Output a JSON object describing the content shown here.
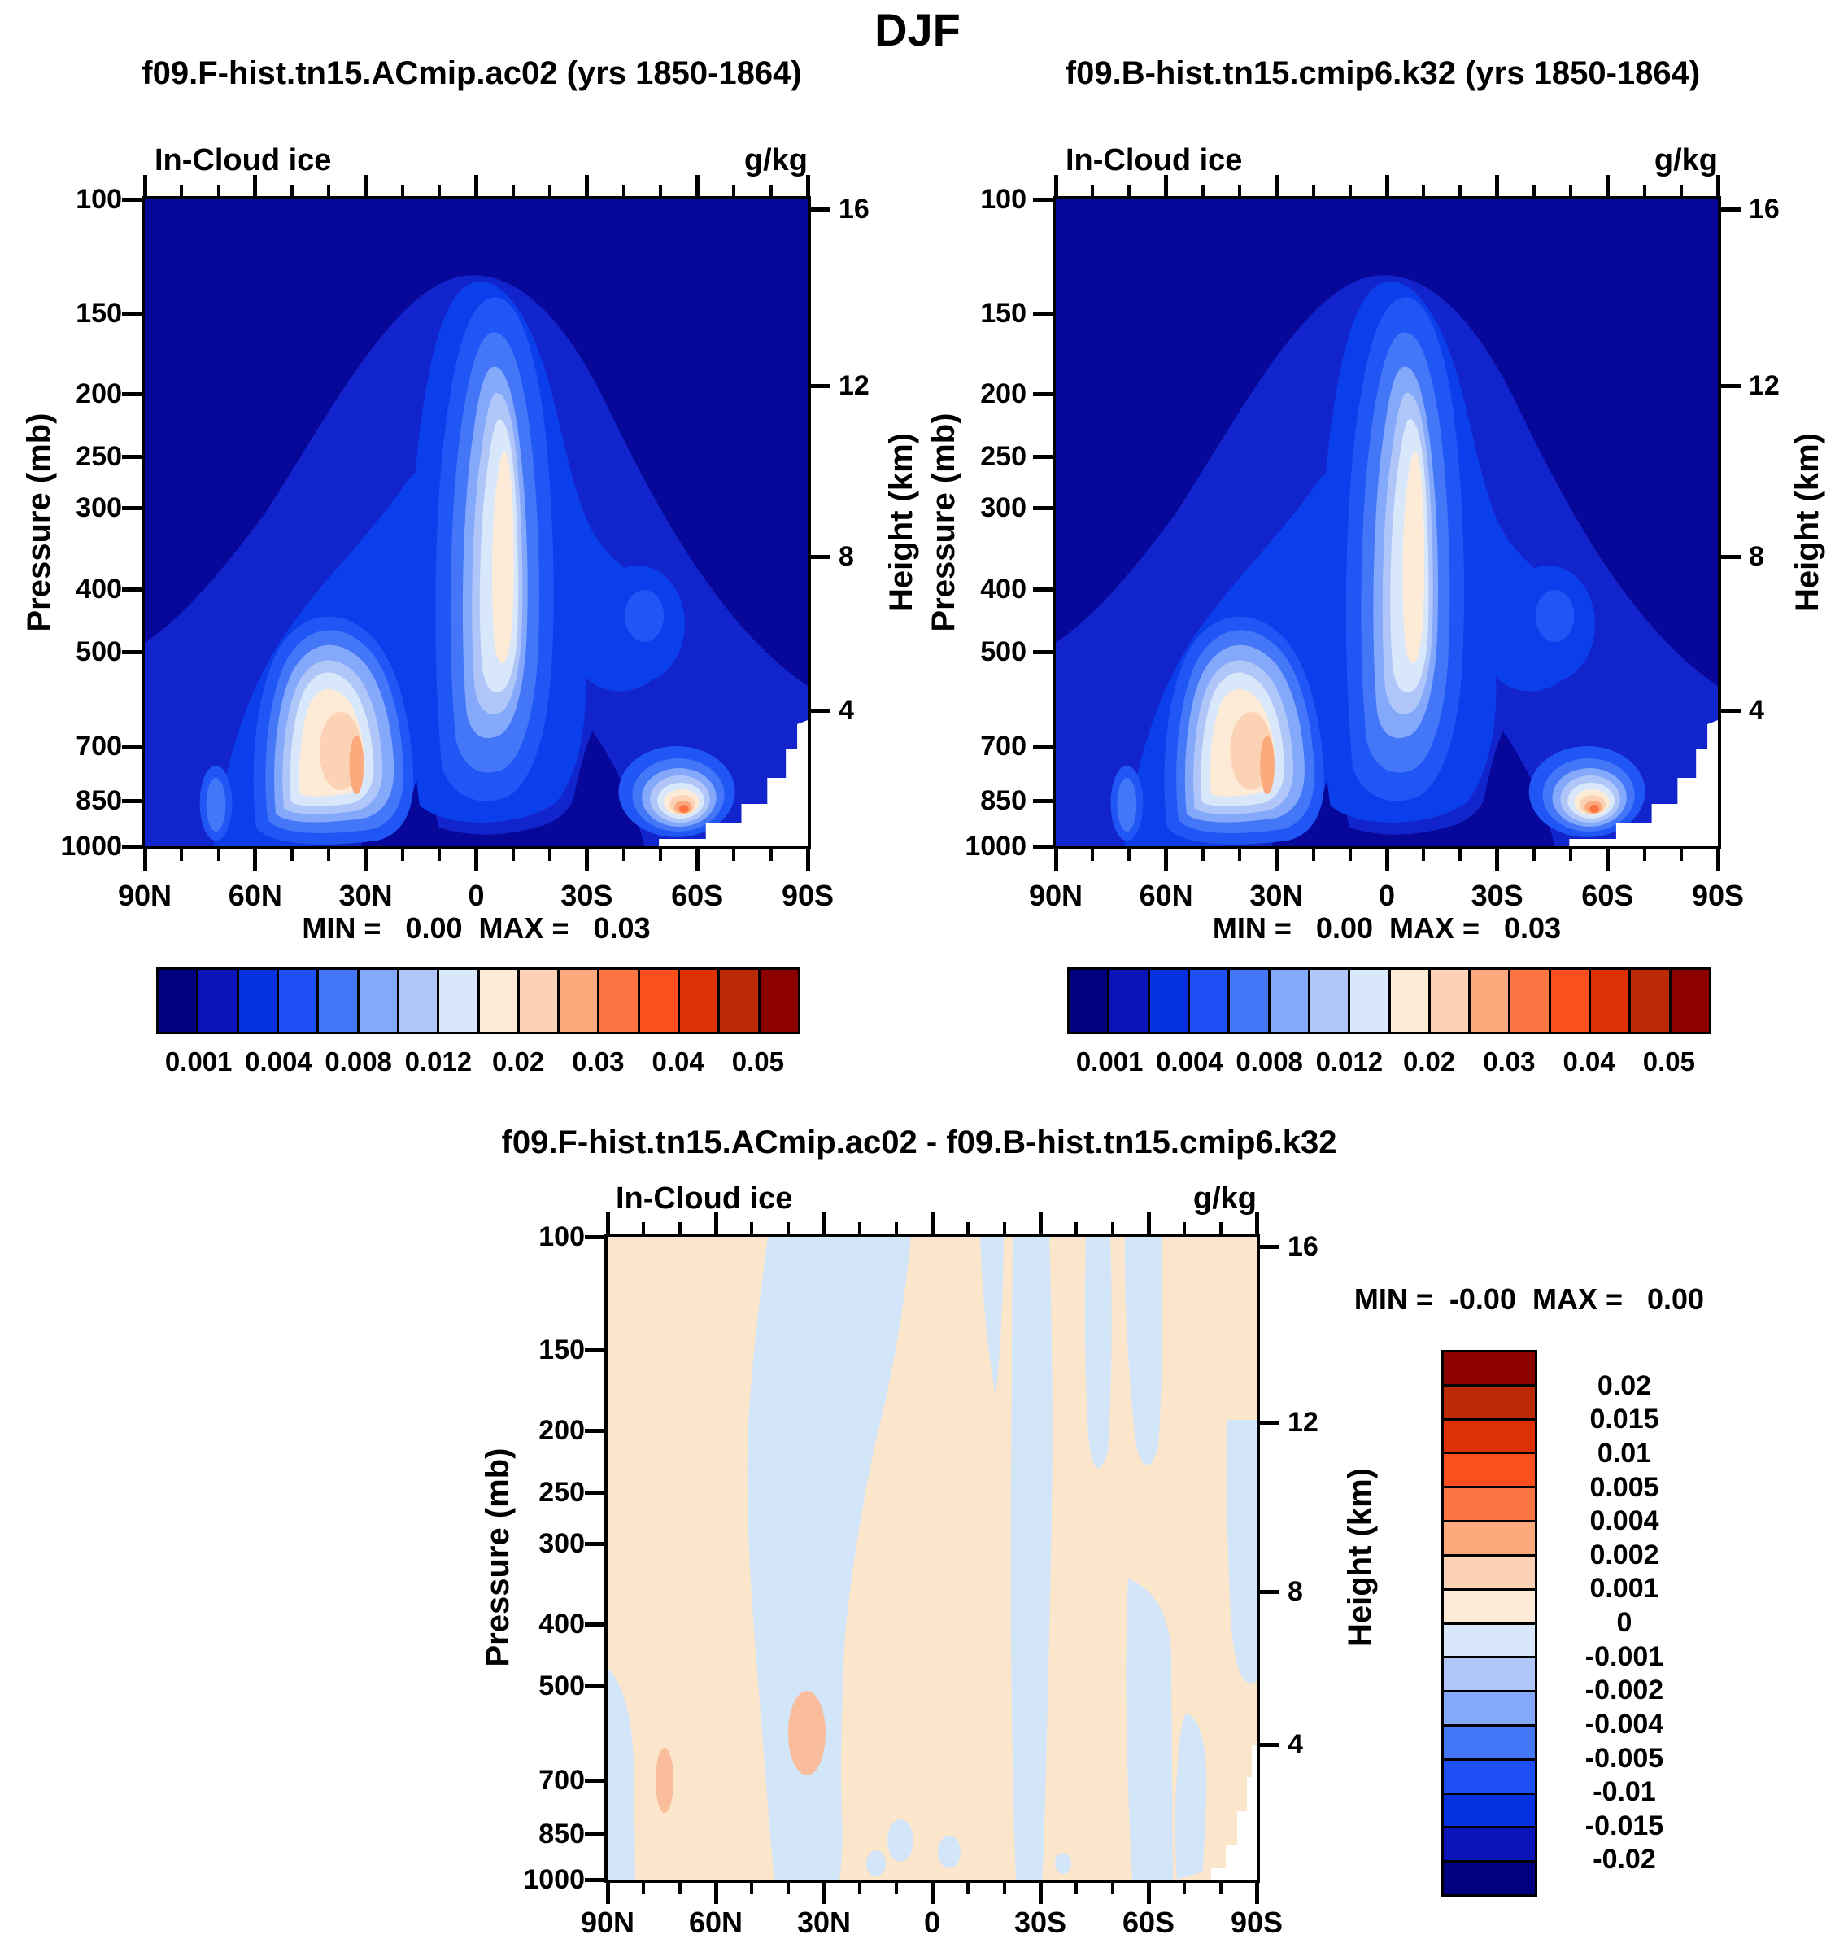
{
  "figure": {
    "title": "DJF"
  },
  "panels": {
    "left": {
      "title": "f09.F-hist.tn15.ACmip.ac02 (yrs 1850-1864)",
      "field_label": "In-Cloud ice",
      "units": "g/kg",
      "stats": "MIN =   0.00  MAX =   0.03"
    },
    "right": {
      "title": "f09.B-hist.tn15.cmip6.k32 (yrs 1850-1864)",
      "field_label": "In-Cloud ice",
      "units": "g/kg",
      "stats": "MIN =   0.00  MAX =   0.03"
    },
    "diff": {
      "title": "f09.F-hist.tn15.ACmip.ac02 - f09.B-hist.tn15.cmip6.k32",
      "field_label": "In-Cloud ice",
      "units": "g/kg",
      "stats": "MIN =  -0.00  MAX =   0.00"
    }
  },
  "axes": {
    "pressure_label": "Pressure (mb)",
    "pressure_ticks": [
      "100",
      "150",
      "200",
      "250",
      "300",
      "400",
      "500",
      "700",
      "850",
      "1000"
    ],
    "height_label": "Height (km)",
    "height_ticks": [
      "16",
      "12",
      "8",
      "4"
    ],
    "lat_ticks": [
      "90N",
      "60N",
      "30N",
      "0",
      "30S",
      "60S",
      "90S"
    ]
  },
  "colorbar": {
    "colors": [
      "#000080",
      "#0a14b8",
      "#0531e0",
      "#1e50f5",
      "#4377f8",
      "#84a9fb",
      "#b0c6f8",
      "#d8e8fa",
      "#fdebd8",
      "#fbd2b4",
      "#fca97e",
      "#fb7442",
      "#fc4f1e",
      "#dd3004",
      "#bc2a05",
      "#8d0000"
    ],
    "labels": [
      "0.001",
      "0.004",
      "0.008",
      "0.012",
      "0.02",
      "0.03",
      "0.04",
      "0.05"
    ],
    "label_boundaries": [
      1,
      3,
      5,
      7,
      9,
      11,
      13,
      15
    ]
  },
  "diff_colorbar": {
    "colors": [
      "#8d0000",
      "#bc2a05",
      "#dd3004",
      "#fc4f1e",
      "#fb7442",
      "#fca97e",
      "#fbd2b4",
      "#fdebd8",
      "#d8e8fa",
      "#b0c6f8",
      "#84a9fb",
      "#4377f8",
      "#1e50f5",
      "#0531e0",
      "#0a14b8",
      "#000080"
    ],
    "labels": [
      "0.02",
      "0.015",
      "0.01",
      "0.005",
      "0.004",
      "0.002",
      "0.001",
      "0",
      "-0.001",
      "-0.002",
      "-0.004",
      "-0.005",
      "-0.01",
      "-0.015",
      "-0.02"
    ]
  },
  "chart_data": [
    {
      "type": "contour",
      "panel": "top-left",
      "title": "f09.F-hist.tn15.ACmip.ac02 (yrs 1850-1864)",
      "variable": "In-Cloud ice",
      "units": "g/kg",
      "x_axis": {
        "ticks": [
          "90N",
          "60N",
          "30N",
          "0",
          "30S",
          "60S",
          "90S"
        ],
        "range_deg": [
          90,
          -90
        ]
      },
      "y_axis_left": {
        "label": "Pressure (mb)",
        "scale": "log",
        "ticks": [
          100,
          150,
          200,
          250,
          300,
          400,
          500,
          700,
          850,
          1000
        ]
      },
      "y_axis_right": {
        "label": "Height (km)",
        "ticks": [
          16,
          12,
          8,
          4
        ]
      },
      "contour_levels": [
        0.001,
        0.002,
        0.004,
        0.006,
        0.008,
        0.01,
        0.012,
        0.016,
        0.02,
        0.025,
        0.03,
        0.035,
        0.04,
        0.045,
        0.05
      ],
      "min": 0.0,
      "max": 0.03,
      "features": [
        {
          "region": "tropical upper troposphere, ~0-15S between 250-500 mb",
          "peak_value": "~0.012-0.016 g/kg (white to pale peach core)"
        },
        {
          "region": "NH mid-latitudes, ~35-55N between 650-950 mb",
          "peak_value": "~0.02-0.025 g/kg (cream core with salmon streak)"
        },
        {
          "region": "SH storm track, ~50-62S between 780-950 mb",
          "peak_value": "~0.03 g/kg (orange core)"
        },
        {
          "region": "remainder of domain",
          "value": "< 0.001 g/kg (dark navy)"
        },
        {
          "region": "below ~900 mb near 75S-90S",
          "value": "no data (white stair-step corner)"
        }
      ]
    },
    {
      "type": "contour",
      "panel": "top-right",
      "title": "f09.B-hist.tn15.cmip6.k32 (yrs 1850-1864)",
      "variable": "In-Cloud ice",
      "units": "g/kg",
      "x_axis": {
        "ticks": [
          "90N",
          "60N",
          "30N",
          "0",
          "30S",
          "60S",
          "90S"
        ],
        "range_deg": [
          90,
          -90
        ]
      },
      "y_axis_left": {
        "label": "Pressure (mb)",
        "scale": "log",
        "ticks": [
          100,
          150,
          200,
          250,
          300,
          400,
          500,
          700,
          850,
          1000
        ]
      },
      "y_axis_right": {
        "label": "Height (km)",
        "ticks": [
          16,
          12,
          8,
          4
        ]
      },
      "contour_levels": [
        0.001,
        0.002,
        0.004,
        0.006,
        0.008,
        0.01,
        0.012,
        0.016,
        0.02,
        0.025,
        0.03,
        0.035,
        0.04,
        0.045,
        0.05
      ],
      "min": 0.0,
      "max": 0.03,
      "note": "field visually near-identical to top-left panel",
      "features": [
        {
          "region": "tropical upper troposphere, ~0-15S between 250-500 mb",
          "peak_value": "~0.012-0.016 g/kg"
        },
        {
          "region": "NH mid-latitudes, ~35-55N between 650-950 mb",
          "peak_value": "~0.02-0.025 g/kg"
        },
        {
          "region": "SH storm track, ~50-62S between 780-950 mb",
          "peak_value": "~0.03 g/kg"
        }
      ]
    },
    {
      "type": "contour",
      "panel": "bottom-difference",
      "title": "f09.F-hist.tn15.ACmip.ac02 - f09.B-hist.tn15.cmip6.k32",
      "variable": "In-Cloud ice difference",
      "units": "g/kg",
      "x_axis": {
        "ticks": [
          "90N",
          "60N",
          "30N",
          "0",
          "30S",
          "60S",
          "90S"
        ],
        "range_deg": [
          90,
          -90
        ]
      },
      "y_axis_left": {
        "label": "Pressure (mb)",
        "scale": "log",
        "ticks": [
          100,
          150,
          200,
          250,
          300,
          400,
          500,
          700,
          850,
          1000
        ]
      },
      "y_axis_right": {
        "label": "Height (km)",
        "ticks": [
          16,
          12,
          8,
          4
        ]
      },
      "contour_levels": [
        -0.02,
        -0.015,
        -0.01,
        -0.005,
        -0.004,
        -0.002,
        -0.001,
        0,
        0.001,
        0.002,
        0.004,
        0.005,
        0.01,
        0.015,
        0.02
      ],
      "min": -0.0,
      "max": 0.0,
      "features": [
        {
          "region": "most of domain",
          "value": "between -0.001 and +0.001 g/kg: pale peach (slightly positive) with irregular pale blue (slightly negative) vertical bands"
        },
        {
          "region": "~35N, 650-850 mb",
          "peak_value": "+0.001 to +0.002 g/kg (small salmon patch)"
        },
        {
          "region": "~72N, 800-900 mb",
          "peak_value": "+0.001 to +0.002 g/kg (small salmon patch)"
        },
        {
          "region": "bottom-right corner near 85S-90S below ~900 mb",
          "value": "no data (white notch)"
        }
      ]
    }
  ]
}
